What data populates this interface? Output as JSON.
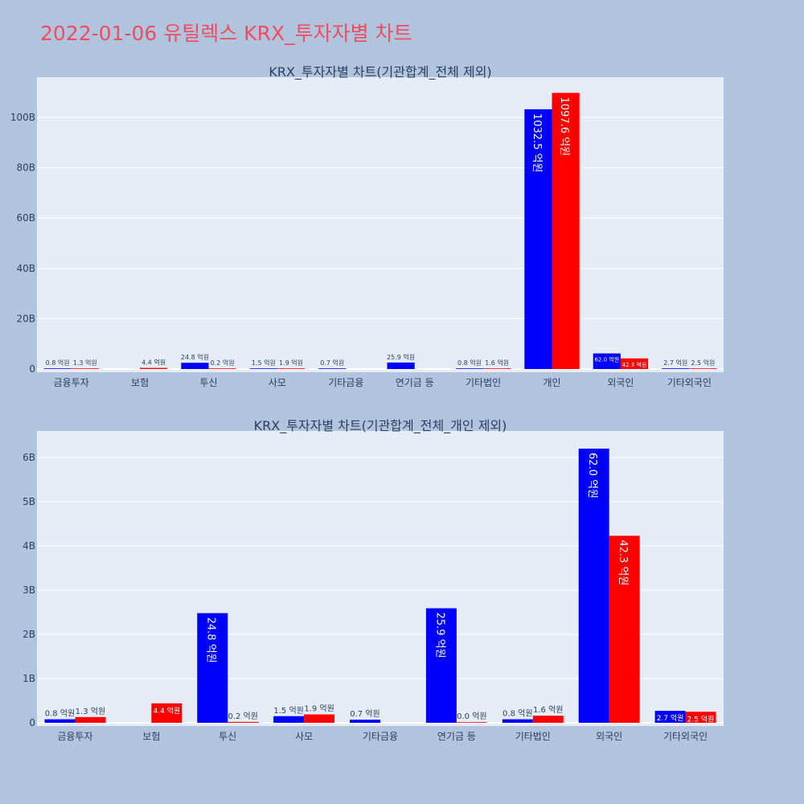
{
  "page": {
    "title": "2022-01-06 유틸렉스 KRX_투자자별 차트",
    "background": "#b0c4de",
    "plot_background": "#e5ecf6",
    "buy_color": "#0000ff",
    "sell_color": "#ff0000"
  },
  "chart_data": [
    {
      "type": "bar",
      "title": "KRX_투자자별 차트(기관합계_전체 제외)",
      "xlabel": "",
      "ylabel": "",
      "categories": [
        "금융투자",
        "보험",
        "투신",
        "사모",
        "기타금융",
        "연기금 등",
        "기타법인",
        "개인",
        "외국인",
        "기타외국인"
      ],
      "ylim": [
        0,
        116
      ],
      "yticks": [
        0,
        20,
        40,
        60,
        80,
        100
      ],
      "ytick_labels": [
        "0",
        "20B",
        "40B",
        "60B",
        "80B",
        "100B"
      ],
      "series": [
        {
          "color": "#0000ff",
          "values": [
            0.08,
            null,
            2.48,
            0.15,
            0.07,
            2.59,
            0.08,
            103.25,
            6.2,
            0.27
          ],
          "labels": [
            "0.8 억원",
            "",
            "24.8 억원",
            "1.5 억원",
            "0.7 억원",
            "25.9 억원",
            "0.8 억원",
            "1032.5 억원",
            "62.0 억원",
            "2.7 억원"
          ]
        },
        {
          "color": "#ff0000",
          "values": [
            0.13,
            0.44,
            0.02,
            0.19,
            null,
            null,
            0.16,
            109.76,
            4.23,
            0.25
          ],
          "labels": [
            "1.3 억원",
            "4.4 억원",
            "0.2 억원",
            "1.9 억원",
            "",
            "",
            "1.6 억원",
            "1097.6 억원",
            "42.3 억원",
            "2.5 억원"
          ]
        }
      ]
    },
    {
      "type": "bar",
      "title": "KRX_투자자별 차트(기관합계_전체_개인 제외)",
      "xlabel": "",
      "ylabel": "",
      "categories": [
        "금융투자",
        "보험",
        "투신",
        "사모",
        "기타금융",
        "연기금 등",
        "기타법인",
        "외국인",
        "기타외국인"
      ],
      "ylim": [
        0,
        6.6
      ],
      "yticks": [
        0,
        1,
        2,
        3,
        4,
        5,
        6
      ],
      "ytick_labels": [
        "0",
        "1B",
        "2B",
        "3B",
        "4B",
        "5B",
        "6B"
      ],
      "series": [
        {
          "color": "#0000ff",
          "values": [
            0.08,
            null,
            2.48,
            0.15,
            0.07,
            2.59,
            0.08,
            6.2,
            0.27
          ],
          "labels": [
            "0.8 억원",
            "",
            "24.8 억원",
            "1.5 억원",
            "0.7 억원",
            "25.9 억원",
            "0.8 억원",
            "62.0 억원",
            "2.7 억원"
          ]
        },
        {
          "color": "#ff0000",
          "values": [
            0.13,
            0.44,
            0.02,
            0.19,
            null,
            0.0,
            0.16,
            4.23,
            0.25
          ],
          "labels": [
            "1.3 억원",
            "4.4 억원",
            "0.2 억원",
            "1.9 억원",
            "",
            "0.0 억원",
            "1.6 억원",
            "42.3 억원",
            "2.5 억원"
          ]
        }
      ]
    }
  ]
}
